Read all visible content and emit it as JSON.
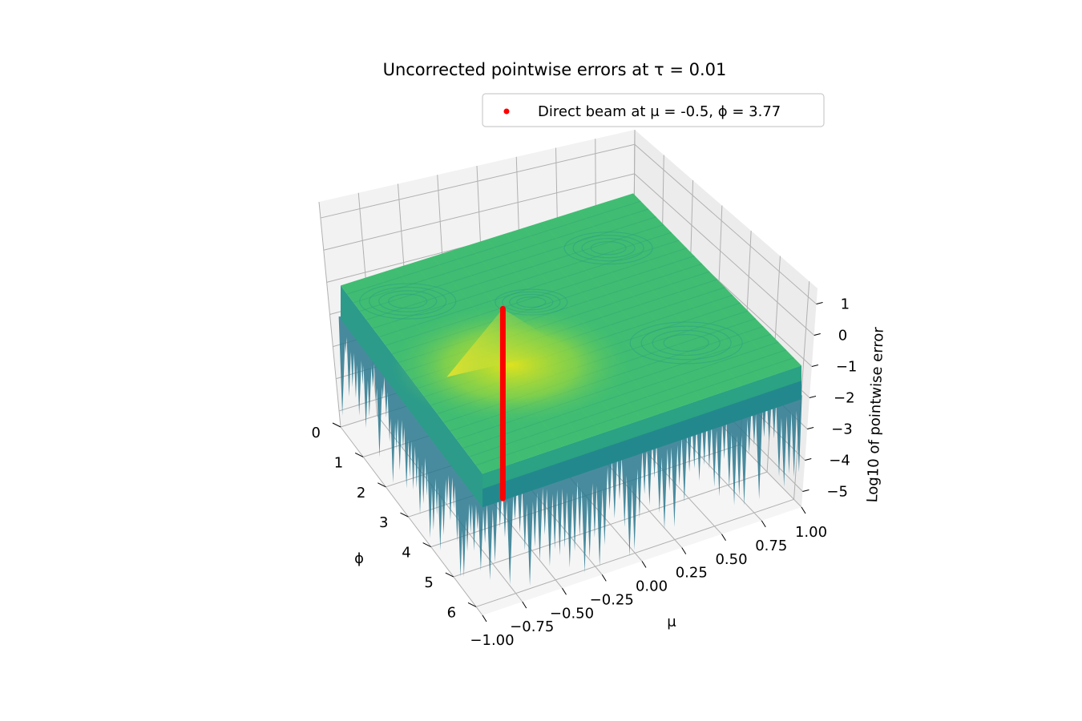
{
  "chart_data": {
    "type": "surface3d",
    "title": "Uncorrected pointwise errors at τ = 0.01",
    "xlabel": "μ",
    "ylabel": "ϕ",
    "zlabel": "Log10 of pointwise error",
    "x_ticks": [
      "−1.00",
      "−0.75",
      "−0.50",
      "−0.25",
      "0.00",
      "0.25",
      "0.50",
      "0.75",
      "1.00"
    ],
    "x_tick_values": [
      -1.0,
      -0.75,
      -0.5,
      -0.25,
      0.0,
      0.25,
      0.5,
      0.75,
      1.0
    ],
    "y_ticks": [
      "0",
      "1",
      "2",
      "3",
      "4",
      "5",
      "6"
    ],
    "y_tick_values": [
      0,
      1,
      2,
      3,
      4,
      5,
      6
    ],
    "z_ticks": [
      "−5",
      "−4",
      "−3",
      "−2",
      "−1",
      "0",
      "1"
    ],
    "z_tick_values": [
      -5,
      -4,
      -3,
      -2,
      -1,
      0,
      1
    ],
    "xlim": [
      -1.0,
      1.0
    ],
    "ylim": [
      0,
      6.283
    ],
    "zlim": [
      -5.5,
      1.5
    ],
    "colormap": "viridis",
    "surface_level": -1.1,
    "direct_beam": {
      "mu": -0.5,
      "phi": 3.77,
      "z_range": [
        -5.0,
        0.9
      ],
      "peak_value": 0.9,
      "color": "#ff0000",
      "label": "Direct beam at μ = -0.5, ϕ = 3.77"
    },
    "legend_position": "top-right",
    "grid": true
  }
}
